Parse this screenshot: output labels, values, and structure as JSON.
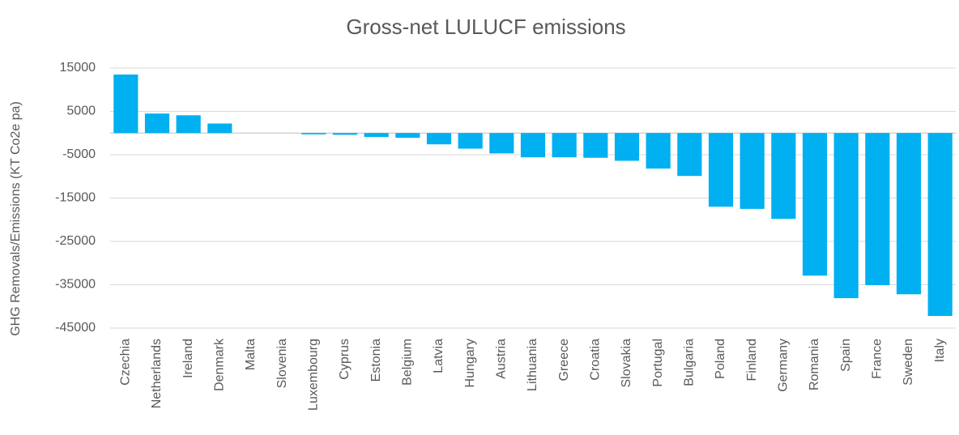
{
  "chart_data": {
    "type": "bar",
    "title": "Gross-net LULUCF emissions",
    "y_label": "GHG Removals/Emissions (KT Co2e pa)",
    "categories": [
      "Czechia",
      "Netherlands",
      "Ireland",
      "Denmark",
      "Malta",
      "Slovenia",
      "Luxembourg",
      "Cyprus",
      "Estonia",
      "Belgium",
      "Latvia",
      "Hungary",
      "Austria",
      "Lithuania",
      "Greece",
      "Croatia",
      "Slovakia",
      "Portugal",
      "Bulgaria",
      "Poland",
      "Finland",
      "Germany",
      "Romania",
      "Spain",
      "France",
      "Sweden",
      "Italy"
    ],
    "values": [
      13500,
      4500,
      4100,
      2200,
      0,
      0,
      -300,
      -400,
      -900,
      -1100,
      -2600,
      -3600,
      -4700,
      -5600,
      -5600,
      -5700,
      -6400,
      -8200,
      -9900,
      -17000,
      -17500,
      -19800,
      -32900,
      -38100,
      -35100,
      -37200,
      -42200
    ],
    "color": "#00b0f0",
    "ylim": [
      -45000,
      15000
    ],
    "yticks": [
      15000,
      5000,
      -5000,
      -15000,
      -25000,
      -35000,
      -45000
    ],
    "grid": true
  }
}
